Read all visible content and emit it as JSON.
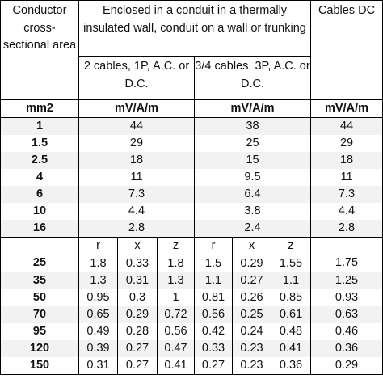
{
  "header": {
    "conductor": "Conductor cross-sectional area",
    "enclosed": "Enclosed in a conduit in a thermally insulated wall, conduit on a wall or trunking",
    "dc": "Cables DC",
    "sub_two": "2 cables, 1P, A.C. or D.C.",
    "sub_three": "3/4 cables, 3P, A.C. or D.C."
  },
  "units": {
    "area": "mm2",
    "two": "mV/A/m",
    "three": "mV/A/m",
    "dc": "mV/A/m"
  },
  "small_rows": [
    {
      "size": "1",
      "two": "44",
      "three": "38",
      "dc": "44"
    },
    {
      "size": "1.5",
      "two": "29",
      "three": "25",
      "dc": "29"
    },
    {
      "size": "2.5",
      "two": "18",
      "three": "15",
      "dc": "18"
    },
    {
      "size": "4",
      "two": "11",
      "three": "9.5",
      "dc": "11"
    },
    {
      "size": "6",
      "two": "7.3",
      "three": "6.4",
      "dc": "7.3"
    },
    {
      "size": "10",
      "two": "4.4",
      "three": "3.8",
      "dc": "4.4"
    },
    {
      "size": "16",
      "two": "2.8",
      "three": "2.4",
      "dc": "2.8"
    }
  ],
  "rxz_labels": {
    "r": "r",
    "x": "x",
    "z": "z"
  },
  "large_rows": [
    {
      "size": "25",
      "r2": "1.8",
      "x2": "0.33",
      "z2": "1.8",
      "r3": "1.5",
      "x3": "0.29",
      "z3": "1.55",
      "dc": "1.75"
    },
    {
      "size": "35",
      "r2": "1.3",
      "x2": "0.31",
      "z2": "1.3",
      "r3": "1.1",
      "x3": "0.27",
      "z3": "1.1",
      "dc": "1.25"
    },
    {
      "size": "50",
      "r2": "0.95",
      "x2": "0.3",
      "z2": "1",
      "r3": "0.81",
      "x3": "0.26",
      "z3": "0.85",
      "dc": "0.93"
    },
    {
      "size": "70",
      "r2": "0.65",
      "x2": "0.29",
      "z2": "0.72",
      "r3": "0.56",
      "x3": "0.25",
      "z3": "0.61",
      "dc": "0.63"
    },
    {
      "size": "95",
      "r2": "0.49",
      "x2": "0.28",
      "z2": "0.56",
      "r3": "0.42",
      "x3": "0.24",
      "z3": "0.48",
      "dc": "0.46"
    },
    {
      "size": "120",
      "r2": "0.39",
      "x2": "0.27",
      "z2": "0.47",
      "r3": "0.33",
      "x3": "0.23",
      "z3": "0.41",
      "dc": "0.36"
    },
    {
      "size": "150",
      "r2": "0.31",
      "x2": "0.27",
      "z2": "0.41",
      "r3": "0.27",
      "x3": "0.23",
      "z3": "0.36",
      "dc": "0.29"
    }
  ]
}
